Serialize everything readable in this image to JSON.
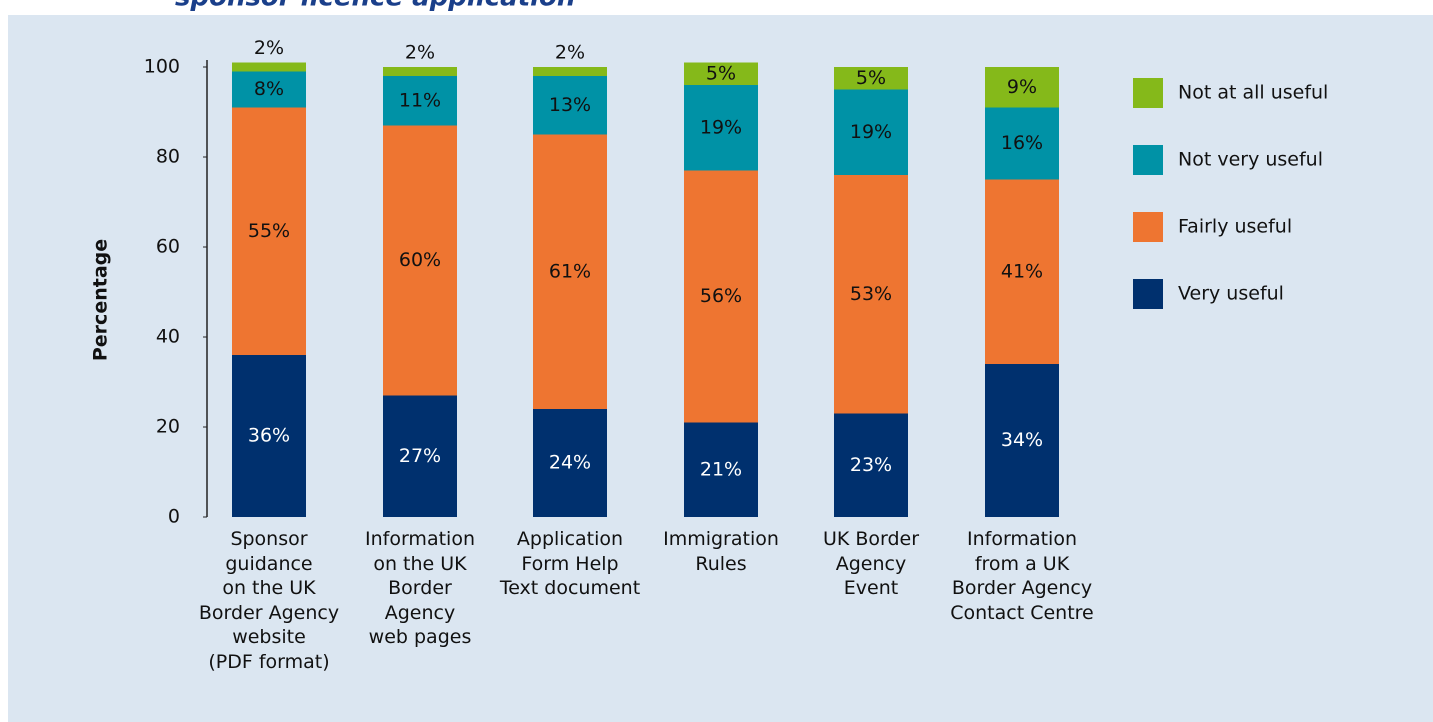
{
  "chart_data": {
    "type": "stacked_bar",
    "title": "sponsor licence application",
    "y_label": "Percentage",
    "categories": [
      "Sponsor\nguidance\non the UK\nBorder Agency\nwebsite\n(PDF format)",
      "Information\non the UK\nBorder\nAgency\nweb pages",
      "Application\nForm Help\nText document",
      "Immigration\nRules",
      "UK Border\nAgency\nEvent",
      "Information\nfrom a UK\nBorder Agency\nContact Centre"
    ],
    "series": [
      {
        "name": "Very useful",
        "color": "#00306e",
        "values": [
          36,
          27,
          24,
          21,
          23,
          34
        ],
        "value_labels": [
          "36%",
          "27%",
          "24%",
          "21%",
          "23%",
          "34%"
        ]
      },
      {
        "name": "Fairly useful",
        "color": "#ee7531",
        "values": [
          55,
          60,
          61,
          56,
          53,
          41
        ],
        "value_labels": [
          "55%",
          "60%",
          "61%",
          "56%",
          "53%",
          "41%"
        ]
      },
      {
        "name": "Not very useful",
        "color": "#0092a6",
        "values": [
          8,
          11,
          13,
          19,
          19,
          16
        ],
        "value_labels": [
          "8%",
          "11%",
          "13%",
          "19%",
          "19%",
          "16%"
        ]
      },
      {
        "name": "Not at all useful",
        "color": "#85b91a",
        "values": [
          2,
          2,
          2,
          5,
          5,
          9
        ],
        "value_labels": [
          "2%",
          "2%",
          "2%",
          "5%",
          "5%",
          "9%"
        ]
      }
    ],
    "ylim": [
      0,
      100
    ],
    "yticks": [
      0,
      20,
      40,
      60,
      80,
      100
    ]
  }
}
